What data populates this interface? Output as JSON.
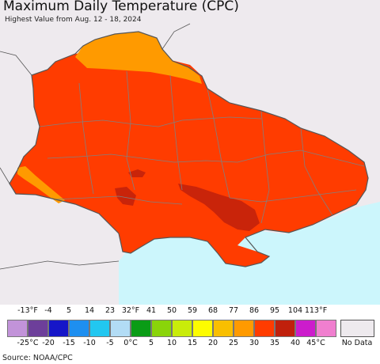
{
  "header": {
    "title": "Maximum Daily Temperature (CPC)",
    "subtitle": "Highest Value from Aug. 12 - 18, 2024"
  },
  "map": {
    "background_land": "#eeeaee",
    "sea_color": "#ccf6fc",
    "border_color": "#808080",
    "outer_border_color": "#555555",
    "regions": [
      {
        "name": "north-band",
        "color": "#ff9a00",
        "range": "25 to 30 °C"
      },
      {
        "name": "main-area",
        "color": "#ff3c00",
        "range": "30 to 35 °C"
      },
      {
        "name": "southwest-band",
        "color": "#ff9a00",
        "range": "25 to 30 °C"
      },
      {
        "name": "south-hotspot",
        "color": "#c0200c",
        "range": "35 to 40 °C"
      }
    ]
  },
  "legend": {
    "fahrenheit_labels": [
      "-13°F",
      "-4",
      "5",
      "14",
      "23",
      "32°F",
      "41",
      "50",
      "59",
      "68",
      "77",
      "86",
      "95",
      "104",
      "113°F"
    ],
    "celsius_labels": [
      "-25°C",
      "-20",
      "-15",
      "-10",
      "-5",
      "0°C",
      "5",
      "10",
      "15",
      "20",
      "25",
      "30",
      "35",
      "40",
      "45°C"
    ],
    "colors": [
      "#c293d9",
      "#6d3f9a",
      "#1616c8",
      "#1e8ff0",
      "#22c7f0",
      "#b2dcf5",
      "#0a9c16",
      "#8ad40a",
      "#c9ec0a",
      "#fdfc00",
      "#f9bf00",
      "#ff9a00",
      "#ff3c00",
      "#c0200c",
      "#cc1ccc",
      "#f07fcf"
    ],
    "no_data_label": "No Data",
    "no_data_color": "#eeeaee"
  },
  "footer": {
    "source": "Source: NOAA/CPC"
  }
}
